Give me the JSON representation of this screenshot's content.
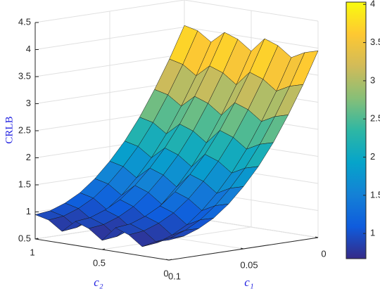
{
  "chart_data": {
    "type": "surface",
    "xlabel": "c₁",
    "ylabel": "c₂",
    "zlabel": "CRLB",
    "x": [
      0,
      0.01,
      0.02,
      0.03,
      0.04,
      0.05,
      0.06,
      0.07,
      0.08,
      0.09,
      0.1
    ],
    "y": [
      0,
      0.1,
      0.2,
      0.3,
      0.4,
      0.5,
      0.6,
      0.7,
      0.8,
      0.9,
      1
    ],
    "z": [
      [
        3.95,
        3.37,
        2.85,
        2.38,
        1.98,
        1.65,
        1.37,
        1.15,
        1.0,
        0.9,
        0.87
      ],
      [
        3.88,
        3.3,
        2.78,
        2.31,
        1.91,
        1.58,
        1.3,
        1.08,
        0.93,
        0.83,
        0.8
      ],
      [
        3.75,
        3.17,
        2.65,
        2.18,
        1.78,
        1.45,
        1.17,
        0.95,
        0.8,
        0.7,
        0.67
      ],
      [
        3.93,
        3.35,
        2.83,
        2.36,
        1.96,
        1.63,
        1.35,
        1.13,
        0.98,
        0.88,
        0.85
      ],
      [
        4.02,
        3.44,
        2.92,
        2.45,
        2.05,
        1.72,
        1.44,
        1.22,
        1.07,
        0.97,
        0.94
      ],
      [
        3.75,
        3.17,
        2.65,
        2.18,
        1.78,
        1.45,
        1.17,
        0.95,
        0.8,
        0.7,
        0.67
      ],
      [
        3.93,
        3.35,
        2.83,
        2.36,
        1.96,
        1.63,
        1.35,
        1.13,
        0.98,
        0.88,
        0.85
      ],
      [
        4.02,
        3.44,
        2.92,
        2.45,
        2.05,
        1.72,
        1.44,
        1.22,
        1.07,
        0.97,
        0.94
      ],
      [
        3.8,
        3.22,
        2.7,
        2.23,
        1.83,
        1.5,
        1.22,
        1.0,
        0.85,
        0.75,
        0.72
      ],
      [
        3.97,
        3.39,
        2.87,
        2.4,
        2.0,
        1.67,
        1.39,
        1.17,
        1.02,
        0.92,
        0.89
      ],
      [
        4.03,
        3.45,
        2.93,
        2.46,
        2.06,
        1.73,
        1.45,
        1.23,
        1.08,
        0.98,
        0.95
      ]
    ],
    "xlim": [
      0,
      0.1
    ],
    "xticks": [
      0,
      0.05,
      0.1
    ],
    "ylim": [
      0,
      1
    ],
    "yticks": [
      0,
      0.5,
      1
    ],
    "zlim": [
      0.5,
      4.5
    ],
    "zticks": [
      0.5,
      1,
      1.5,
      2,
      2.5,
      3,
      3.5,
      4,
      4.5
    ],
    "grid": true,
    "colormap": "parula",
    "colorbar": {
      "limits": [
        0.67,
        4.03
      ],
      "ticks": [
        1,
        1.5,
        2,
        2.5,
        3,
        3.5,
        4
      ]
    }
  }
}
